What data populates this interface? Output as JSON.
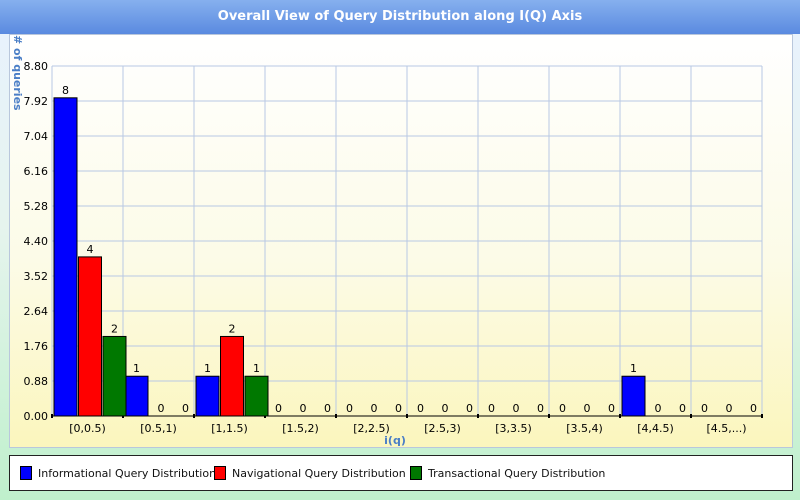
{
  "chart_data": {
    "type": "bar",
    "title": "Overall View of Query Distribution along I(Q) Axis",
    "xlabel": "i(q)",
    "ylabel": "# of queries",
    "ylim": [
      0,
      8.8
    ],
    "yticks": [
      "0.00",
      "0.88",
      "1.76",
      "2.64",
      "3.52",
      "4.40",
      "5.28",
      "6.16",
      "7.04",
      "7.92",
      "8.80"
    ],
    "categories": [
      "[0,0.5)",
      "[0.5,1)",
      "[1,1.5)",
      "[1.5,2)",
      "[2,2.5)",
      "[2.5,3)",
      "[3,3.5)",
      "[3.5,4)",
      "[4,4.5)",
      "[4.5,...)"
    ],
    "series": [
      {
        "name": "Informational Query Distribution",
        "color": "#0000ff",
        "values": [
          8,
          1,
          1,
          0,
          0,
          0,
          0,
          0,
          1,
          0
        ]
      },
      {
        "name": "Navigational Query Distribution",
        "color": "#ff0000",
        "values": [
          4,
          0,
          2,
          0,
          0,
          0,
          0,
          0,
          0,
          0
        ]
      },
      {
        "name": "Transactional Query Distribution",
        "color": "#007800",
        "values": [
          2,
          0,
          1,
          0,
          0,
          0,
          0,
          0,
          0,
          0
        ]
      }
    ],
    "grid": true,
    "legend_position": "bottom"
  },
  "colors": {
    "title_text": "#ffffff",
    "axis_label": "#4a7ec6",
    "grid": "#b8c8e4"
  }
}
